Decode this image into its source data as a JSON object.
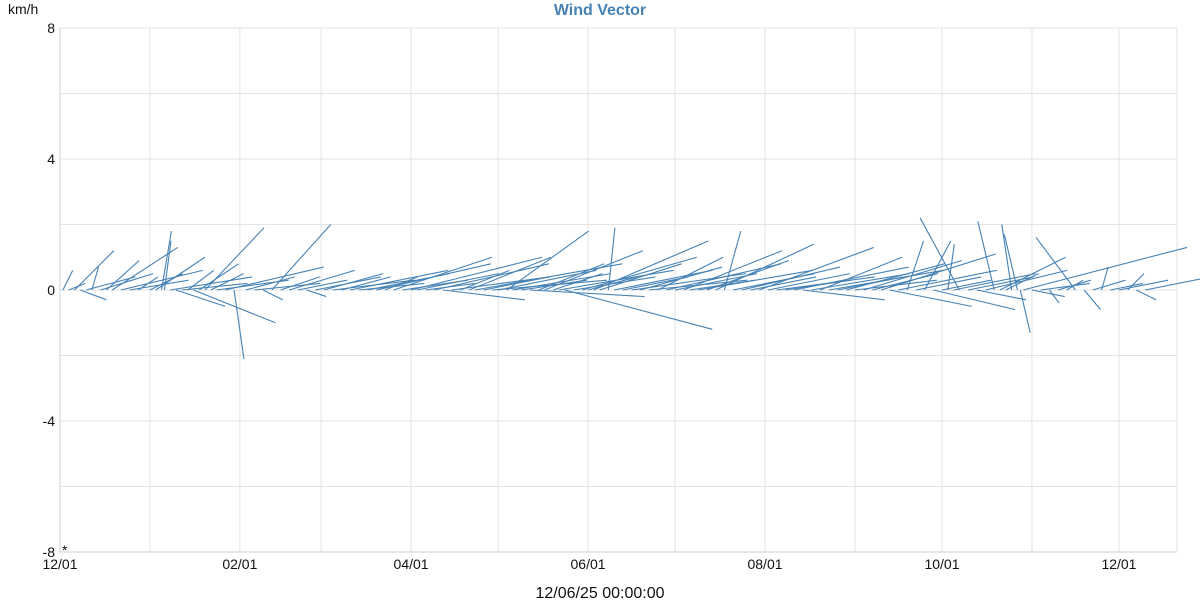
{
  "chart_data": {
    "type": "vector",
    "title": "Wind Vector",
    "ylabel": "km/h",
    "xlabel": "12/06/25 00:00:00",
    "origin_mark": "*",
    "ylim": [
      -8,
      8
    ],
    "yticks": [
      8,
      4,
      0,
      -4,
      -8
    ],
    "xlim": [
      "2024-12-01",
      "2025-12-21"
    ],
    "xticks": [
      {
        "date": "2024-12-01",
        "label": "12/01"
      },
      {
        "date": "2025-02-01",
        "label": "02/01"
      },
      {
        "date": "2025-04-01",
        "label": "04/01"
      },
      {
        "date": "2025-06-01",
        "label": "06/01"
      },
      {
        "date": "2025-08-01",
        "label": "08/01"
      },
      {
        "date": "2025-10-01",
        "label": "10/01"
      },
      {
        "date": "2025-12-01",
        "label": "12/01"
      }
    ],
    "xgrid_dates": [
      "2024-12-01",
      "2025-01-01",
      "2025-02-01",
      "2025-03-01",
      "2025-04-01",
      "2025-05-01",
      "2025-06-01",
      "2025-07-01",
      "2025-08-01",
      "2025-09-01",
      "2025-10-01",
      "2025-11-01",
      "2025-12-01"
    ],
    "grid": true,
    "color": "#4682B4",
    "series": [
      {
        "vectors": [
          {
            "date": "2024-12-02",
            "u": 0.3,
            "v": 0.6
          },
          {
            "date": "2024-12-04",
            "u": 0.5,
            "v": 0.2
          },
          {
            "date": "2024-12-06",
            "u": 1.2,
            "v": 1.2
          },
          {
            "date": "2024-12-08",
            "u": 0.8,
            "v": -0.3
          },
          {
            "date": "2024-12-10",
            "u": 1.5,
            "v": 0.4
          },
          {
            "date": "2024-12-12",
            "u": 0.2,
            "v": 0.7
          },
          {
            "date": "2024-12-15",
            "u": 1.6,
            "v": 0.5
          },
          {
            "date": "2024-12-17",
            "u": 1.0,
            "v": 0.9
          },
          {
            "date": "2024-12-19",
            "u": 2.0,
            "v": 1.3
          },
          {
            "date": "2024-12-22",
            "u": 2.5,
            "v": 0.6
          },
          {
            "date": "2024-12-25",
            "u": 1.8,
            "v": 0.3
          },
          {
            "date": "2024-12-28",
            "u": 0.6,
            "v": 0.4
          },
          {
            "date": "2025-01-01",
            "u": 1.0,
            "v": 0.5
          },
          {
            "date": "2025-01-03",
            "u": 1.5,
            "v": 1.0
          },
          {
            "date": "2025-01-05",
            "u": 0.3,
            "v": 1.8
          },
          {
            "date": "2025-01-06",
            "u": 0.2,
            "v": 1.5
          },
          {
            "date": "2025-01-08",
            "u": 2.5,
            "v": 0.4
          },
          {
            "date": "2025-01-10",
            "u": 1.5,
            "v": -0.5
          },
          {
            "date": "2025-01-12",
            "u": 2.0,
            "v": 0.2
          },
          {
            "date": "2025-01-14",
            "u": 0.8,
            "v": 0.6
          },
          {
            "date": "2025-01-16",
            "u": 2.5,
            "v": -1.0
          },
          {
            "date": "2025-01-18",
            "u": 1.2,
            "v": 0.8
          },
          {
            "date": "2025-01-20",
            "u": 1.8,
            "v": 1.9
          },
          {
            "date": "2025-01-22",
            "u": 1.0,
            "v": 0.5
          },
          {
            "date": "2025-01-24",
            "u": 2.2,
            "v": 0.3
          },
          {
            "date": "2025-01-27",
            "u": 3.0,
            "v": 0.7
          },
          {
            "date": "2025-01-30",
            "u": 0.3,
            "v": -2.1
          },
          {
            "date": "2025-02-03",
            "u": 1.5,
            "v": 0.4
          },
          {
            "date": "2025-02-06",
            "u": 2.0,
            "v": 0.2
          },
          {
            "date": "2025-02-09",
            "u": 0.6,
            "v": -0.3
          },
          {
            "date": "2025-02-12",
            "u": 1.8,
            "v": 2.0
          },
          {
            "date": "2025-02-15",
            "u": 1.2,
            "v": 0.4
          },
          {
            "date": "2025-02-18",
            "u": 2.0,
            "v": 0.6
          },
          {
            "date": "2025-02-21",
            "u": 1.5,
            "v": 0.3
          },
          {
            "date": "2025-02-24",
            "u": 0.6,
            "v": -0.2
          },
          {
            "date": "2025-02-27",
            "u": 2.0,
            "v": 0.4
          },
          {
            "date": "2025-03-02",
            "u": 1.8,
            "v": 0.5
          },
          {
            "date": "2025-03-05",
            "u": 2.5,
            "v": 0.3
          },
          {
            "date": "2025-03-08",
            "u": 1.5,
            "v": 0.4
          },
          {
            "date": "2025-03-11",
            "u": 3.0,
            "v": 0.6
          },
          {
            "date": "2025-03-14",
            "u": 2.0,
            "v": 0.2
          },
          {
            "date": "2025-03-17",
            "u": 2.5,
            "v": 0.5
          },
          {
            "date": "2025-03-20",
            "u": 3.5,
            "v": 0.8
          },
          {
            "date": "2025-03-23",
            "u": 1.0,
            "v": 0.4
          },
          {
            "date": "2025-03-26",
            "u": 3.0,
            "v": 1.0
          },
          {
            "date": "2025-03-29",
            "u": 2.0,
            "v": 0.3
          },
          {
            "date": "2025-04-01",
            "u": 4.0,
            "v": 1.0
          },
          {
            "date": "2025-04-03",
            "u": 2.5,
            "v": 0.5
          },
          {
            "date": "2025-04-06",
            "u": 1.5,
            "v": 0.2
          },
          {
            "date": "2025-04-09",
            "u": 3.5,
            "v": 0.8
          },
          {
            "date": "2025-04-12",
            "u": 2.5,
            "v": -0.3
          },
          {
            "date": "2025-04-15",
            "u": 3.0,
            "v": 0.4
          },
          {
            "date": "2025-04-18",
            "u": 1.5,
            "v": 0.6
          },
          {
            "date": "2025-04-21",
            "u": 2.5,
            "v": 1.0
          },
          {
            "date": "2025-04-23",
            "u": 4.5,
            "v": 0.8
          },
          {
            "date": "2025-04-26",
            "u": 2.0,
            "v": 0.4
          },
          {
            "date": "2025-04-29",
            "u": 3.5,
            "v": 0.3
          },
          {
            "date": "2025-05-01",
            "u": 3.0,
            "v": 0.6
          },
          {
            "date": "2025-05-04",
            "u": 2.5,
            "v": 1.8
          },
          {
            "date": "2025-05-06",
            "u": 3.0,
            "v": 0.5
          },
          {
            "date": "2025-05-09",
            "u": 2.0,
            "v": 0.3
          },
          {
            "date": "2025-05-12",
            "u": 3.5,
            "v": -0.2
          },
          {
            "date": "2025-05-15",
            "u": 2.0,
            "v": 0.8
          },
          {
            "date": "2025-05-17",
            "u": 3.0,
            "v": 1.2
          },
          {
            "date": "2025-05-20",
            "u": 1.5,
            "v": 0.5
          },
          {
            "date": "2025-05-22",
            "u": 3.5,
            "v": 0.6
          },
          {
            "date": "2025-05-24",
            "u": 4.5,
            "v": -1.2
          },
          {
            "date": "2025-05-27",
            "u": 2.5,
            "v": 0.4
          },
          {
            "date": "2025-05-30",
            "u": 3.5,
            "v": 1.0
          },
          {
            "date": "2025-06-01",
            "u": 1.5,
            "v": 0.4
          },
          {
            "date": "2025-06-03",
            "u": 3.5,
            "v": 1.5
          },
          {
            "date": "2025-06-05",
            "u": 2.5,
            "v": 0.8
          },
          {
            "date": "2025-06-08",
            "u": 0.2,
            "v": 1.9
          },
          {
            "date": "2025-06-10",
            "u": 3.0,
            "v": 0.6
          },
          {
            "date": "2025-06-13",
            "u": 2.0,
            "v": 0.4
          },
          {
            "date": "2025-06-16",
            "u": 3.5,
            "v": 0.5
          },
          {
            "date": "2025-06-19",
            "u": 2.5,
            "v": 0.7
          },
          {
            "date": "2025-06-22",
            "u": 3.0,
            "v": 0.3
          },
          {
            "date": "2025-06-25",
            "u": 2.0,
            "v": 1.0
          },
          {
            "date": "2025-06-28",
            "u": 3.5,
            "v": 0.8
          },
          {
            "date": "2025-07-01",
            "u": 2.5,
            "v": 0.5
          },
          {
            "date": "2025-07-04",
            "u": 3.0,
            "v": 1.2
          },
          {
            "date": "2025-07-06",
            "u": 2.0,
            "v": 0.3
          },
          {
            "date": "2025-07-09",
            "u": 3.5,
            "v": 0.6
          },
          {
            "date": "2025-07-12",
            "u": 2.5,
            "v": 0.9
          },
          {
            "date": "2025-07-15",
            "u": 3.0,
            "v": 1.4
          },
          {
            "date": "2025-07-18",
            "u": 0.5,
            "v": 1.8
          },
          {
            "date": "2025-07-21",
            "u": 2.5,
            "v": 0.5
          },
          {
            "date": "2025-07-24",
            "u": 3.0,
            "v": 0.7
          },
          {
            "date": "2025-07-27",
            "u": 2.0,
            "v": 0.4
          },
          {
            "date": "2025-07-30",
            "u": 3.5,
            "v": 1.3
          },
          {
            "date": "2025-08-02",
            "u": 2.5,
            "v": 0.5
          },
          {
            "date": "2025-08-05",
            "u": 3.0,
            "v": 0.4
          },
          {
            "date": "2025-08-08",
            "u": 2.0,
            "v": 0.3
          },
          {
            "date": "2025-08-11",
            "u": 3.5,
            "v": 0.7
          },
          {
            "date": "2025-08-14",
            "u": 2.5,
            "v": -0.3
          },
          {
            "date": "2025-08-17",
            "u": 3.0,
            "v": 0.5
          },
          {
            "date": "2025-08-20",
            "u": 2.5,
            "v": 1.0
          },
          {
            "date": "2025-08-23",
            "u": 3.5,
            "v": 0.6
          },
          {
            "date": "2025-08-26",
            "u": 2.0,
            "v": 0.4
          },
          {
            "date": "2025-08-29",
            "u": 3.0,
            "v": 0.8
          },
          {
            "date": "2025-09-01",
            "u": 2.5,
            "v": 0.3
          },
          {
            "date": "2025-09-04",
            "u": 3.0,
            "v": 0.9
          },
          {
            "date": "2025-09-07",
            "u": 2.0,
            "v": 0.5
          },
          {
            "date": "2025-09-10",
            "u": 3.5,
            "v": 1.1
          },
          {
            "date": "2025-09-13",
            "u": 2.5,
            "v": -0.5
          },
          {
            "date": "2025-09-16",
            "u": 3.0,
            "v": 0.6
          },
          {
            "date": "2025-09-19",
            "u": 0.5,
            "v": 1.5
          },
          {
            "date": "2025-09-22",
            "u": 2.0,
            "v": 0.4
          },
          {
            "date": "2025-09-25",
            "u": 0.8,
            "v": 1.5
          },
          {
            "date": "2025-09-28",
            "u": 2.5,
            "v": -0.6
          },
          {
            "date": "2025-10-01",
            "u": 1.5,
            "v": 0.3
          },
          {
            "date": "2025-10-03",
            "u": 0.2,
            "v": 1.4
          },
          {
            "date": "2025-10-05",
            "u": 2.5,
            "v": 0.5
          },
          {
            "date": "2025-10-07",
            "u": -1.2,
            "v": 2.2
          },
          {
            "date": "2025-10-10",
            "u": 2.0,
            "v": 0.4
          },
          {
            "date": "2025-10-13",
            "u": 1.5,
            "v": -0.3
          },
          {
            "date": "2025-10-16",
            "u": 2.5,
            "v": 0.6
          },
          {
            "date": "2025-10-19",
            "u": -0.5,
            "v": 2.1
          },
          {
            "date": "2025-10-21",
            "u": 2.0,
            "v": 1.0
          },
          {
            "date": "2025-10-23",
            "u": 1.0,
            "v": 0.5
          },
          {
            "date": "2025-10-25",
            "u": -0.3,
            "v": 2.0
          },
          {
            "date": "2025-10-27",
            "u": -0.4,
            "v": 1.7
          },
          {
            "date": "2025-10-28",
            "u": 0.3,
            "v": -1.3
          },
          {
            "date": "2025-10-29",
            "u": 5.0,
            "v": 1.3
          },
          {
            "date": "2025-11-01",
            "u": 1.0,
            "v": -0.2
          },
          {
            "date": "2025-11-04",
            "u": 1.5,
            "v": 0.2
          },
          {
            "date": "2025-11-07",
            "u": 0.3,
            "v": -0.4
          },
          {
            "date": "2025-11-10",
            "u": 1.0,
            "v": 0.3
          },
          {
            "date": "2025-11-13",
            "u": 0.5,
            "v": 0.3
          },
          {
            "date": "2025-11-16",
            "u": -1.2,
            "v": 1.6
          },
          {
            "date": "2025-11-19",
            "u": 0.5,
            "v": -0.6
          },
          {
            "date": "2025-11-22",
            "u": 1.0,
            "v": 0.3
          },
          {
            "date": "2025-11-25",
            "u": 0.2,
            "v": 0.7
          },
          {
            "date": "2025-11-28",
            "u": 1.0,
            "v": 0.2
          },
          {
            "date": "2025-12-01",
            "u": 1.5,
            "v": 0.3
          },
          {
            "date": "2025-12-04",
            "u": 0.5,
            "v": 0.5
          },
          {
            "date": "2025-12-07",
            "u": 0.6,
            "v": -0.3
          },
          {
            "date": "2025-12-10",
            "u": 2.5,
            "v": 0.5
          }
        ]
      }
    ]
  }
}
